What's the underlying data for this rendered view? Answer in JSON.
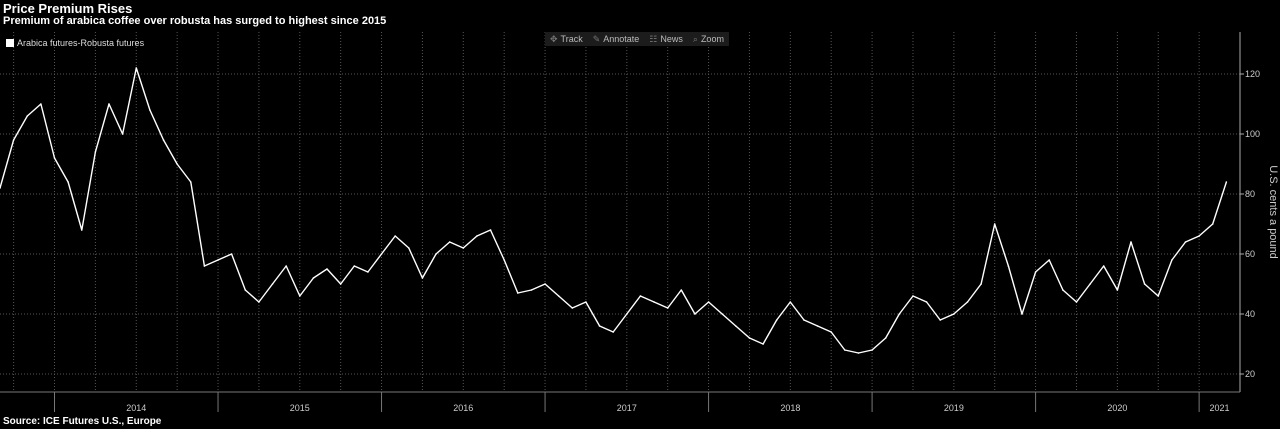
{
  "title": "Price Premium Rises",
  "subtitle": "Premium of arabica coffee over robusta has surged to highest since 2015",
  "source": "Source: ICE Futures U.S., Europe",
  "toolbar": {
    "track": {
      "label": "Track",
      "icon": "crosshair-icon"
    },
    "annotate": {
      "label": "Annotate",
      "icon": "pencil-icon"
    },
    "news": {
      "label": "News",
      "icon": "news-icon"
    },
    "zoom": {
      "label": "Zoom",
      "icon": "magnifier-icon"
    }
  },
  "legend": {
    "label": "Arabica futures-Robusta futures",
    "color": "#ffffff"
  },
  "colors": {
    "background": "#000000",
    "line": "#ffffff",
    "grid": "#555555"
  },
  "chart_data": {
    "type": "line",
    "title": "Price Premium Rises",
    "subtitle": "Premium of arabica coffee over robusta has surged to highest since 2015",
    "ylabel": "U.S. cents a pound",
    "xlabel": "",
    "ylim": [
      14,
      134
    ],
    "yticks": [
      20,
      40,
      60,
      80,
      100,
      120
    ],
    "year_labels": [
      "2014",
      "2015",
      "2016",
      "2017",
      "2018",
      "2019",
      "2020",
      "2021"
    ],
    "x_start": "2013-09",
    "x_end": "2021-04",
    "grid": true,
    "legend_position": "top-left",
    "series": [
      {
        "name": "Arabica futures-Robusta futures",
        "x": [
          "2013-09",
          "2013-10",
          "2013-11",
          "2013-12",
          "2014-01",
          "2014-02",
          "2014-03",
          "2014-04",
          "2014-05",
          "2014-06",
          "2014-07",
          "2014-08",
          "2014-09",
          "2014-10",
          "2014-11",
          "2014-12",
          "2015-01",
          "2015-02",
          "2015-03",
          "2015-04",
          "2015-05",
          "2015-06",
          "2015-07",
          "2015-08",
          "2015-09",
          "2015-10",
          "2015-11",
          "2015-12",
          "2016-01",
          "2016-02",
          "2016-03",
          "2016-04",
          "2016-05",
          "2016-06",
          "2016-07",
          "2016-08",
          "2016-09",
          "2016-10",
          "2016-11",
          "2016-12",
          "2017-01",
          "2017-02",
          "2017-03",
          "2017-04",
          "2017-05",
          "2017-06",
          "2017-07",
          "2017-08",
          "2017-09",
          "2017-10",
          "2017-11",
          "2017-12",
          "2018-01",
          "2018-02",
          "2018-03",
          "2018-04",
          "2018-05",
          "2018-06",
          "2018-07",
          "2018-08",
          "2018-09",
          "2018-10",
          "2018-11",
          "2018-12",
          "2019-01",
          "2019-02",
          "2019-03",
          "2019-04",
          "2019-05",
          "2019-06",
          "2019-07",
          "2019-08",
          "2019-09",
          "2019-10",
          "2019-11",
          "2019-12",
          "2020-01",
          "2020-02",
          "2020-03",
          "2020-04",
          "2020-05",
          "2020-06",
          "2020-07",
          "2020-08",
          "2020-09",
          "2020-10",
          "2020-11",
          "2020-12",
          "2021-01",
          "2021-02",
          "2021-03"
        ],
        "values": [
          82,
          98,
          106,
          110,
          92,
          84,
          68,
          94,
          110,
          100,
          122,
          108,
          98,
          90,
          84,
          56,
          58,
          60,
          48,
          44,
          50,
          56,
          46,
          52,
          55,
          50,
          56,
          54,
          60,
          66,
          62,
          52,
          60,
          64,
          62,
          66,
          68,
          58,
          47,
          48,
          50,
          46,
          42,
          44,
          36,
          34,
          40,
          46,
          44,
          42,
          48,
          40,
          44,
          40,
          36,
          32,
          30,
          38,
          44,
          38,
          36,
          34,
          28,
          27,
          28,
          32,
          40,
          46,
          44,
          38,
          40,
          44,
          50,
          70,
          56,
          40,
          54,
          58,
          48,
          44,
          50,
          56,
          48,
          64,
          50,
          46,
          58,
          64,
          66,
          70,
          84
        ]
      }
    ]
  }
}
